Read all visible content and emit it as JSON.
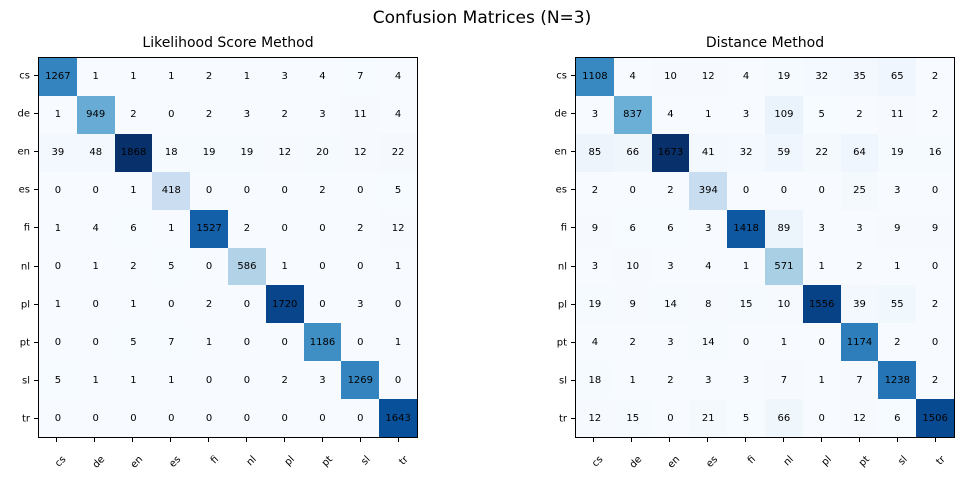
{
  "suptitle": "Confusion Matrices (N=3)",
  "colors": {
    "background": "#ffffff",
    "text": "#000000",
    "spine": "#000000",
    "cmap_name": "Blues",
    "cmap_stops": [
      "#f7fbff",
      "#deebf7",
      "#c6dbef",
      "#9ecae1",
      "#6baed6",
      "#4292c6",
      "#2171b5",
      "#08519c",
      "#08306b"
    ]
  },
  "chart_data": [
    {
      "type": "heatmap",
      "title": "Likelihood Score Method",
      "x_labels": [
        "cs",
        "de",
        "en",
        "es",
        "fi",
        "nl",
        "pl",
        "pt",
        "sl",
        "tr"
      ],
      "y_labels": [
        "cs",
        "de",
        "en",
        "es",
        "fi",
        "nl",
        "pl",
        "pt",
        "sl",
        "tr"
      ],
      "vmin": 0,
      "vmax": 1868,
      "values": [
        [
          1267,
          1,
          1,
          1,
          2,
          1,
          3,
          4,
          7,
          4
        ],
        [
          1,
          949,
          2,
          0,
          2,
          3,
          2,
          3,
          11,
          4
        ],
        [
          39,
          48,
          1868,
          18,
          19,
          19,
          12,
          20,
          12,
          22
        ],
        [
          0,
          0,
          1,
          418,
          0,
          0,
          0,
          2,
          0,
          5
        ],
        [
          1,
          4,
          6,
          1,
          1527,
          2,
          0,
          0,
          2,
          12
        ],
        [
          0,
          1,
          2,
          5,
          0,
          586,
          1,
          0,
          0,
          1
        ],
        [
          1,
          0,
          1,
          0,
          2,
          0,
          1720,
          0,
          3,
          0
        ],
        [
          0,
          0,
          5,
          7,
          1,
          0,
          0,
          1186,
          0,
          1
        ],
        [
          5,
          1,
          1,
          1,
          0,
          0,
          2,
          3,
          1269,
          0
        ],
        [
          0,
          0,
          0,
          0,
          0,
          0,
          0,
          0,
          0,
          1643
        ]
      ]
    },
    {
      "type": "heatmap",
      "title": "Distance Method",
      "x_labels": [
        "cs",
        "de",
        "en",
        "es",
        "fi",
        "nl",
        "pl",
        "pt",
        "sl",
        "tr"
      ],
      "y_labels": [
        "cs",
        "de",
        "en",
        "es",
        "fi",
        "nl",
        "pl",
        "pt",
        "sl",
        "tr"
      ],
      "vmin": 0,
      "vmax": 1673,
      "values": [
        [
          1108,
          4,
          10,
          12,
          4,
          19,
          32,
          35,
          65,
          2
        ],
        [
          3,
          837,
          4,
          1,
          3,
          109,
          5,
          2,
          11,
          2
        ],
        [
          85,
          66,
          1673,
          41,
          32,
          59,
          22,
          64,
          19,
          16
        ],
        [
          2,
          0,
          2,
          394,
          0,
          0,
          0,
          25,
          3,
          0
        ],
        [
          9,
          6,
          6,
          3,
          1418,
          89,
          3,
          3,
          9,
          9
        ],
        [
          3,
          10,
          3,
          4,
          1,
          571,
          1,
          2,
          1,
          0
        ],
        [
          19,
          9,
          14,
          8,
          15,
          10,
          1556,
          39,
          55,
          2
        ],
        [
          4,
          2,
          3,
          14,
          0,
          1,
          0,
          1174,
          2,
          0
        ],
        [
          18,
          1,
          2,
          3,
          3,
          7,
          1,
          7,
          1238,
          2
        ],
        [
          12,
          15,
          0,
          21,
          5,
          66,
          0,
          12,
          6,
          1506
        ]
      ]
    }
  ]
}
